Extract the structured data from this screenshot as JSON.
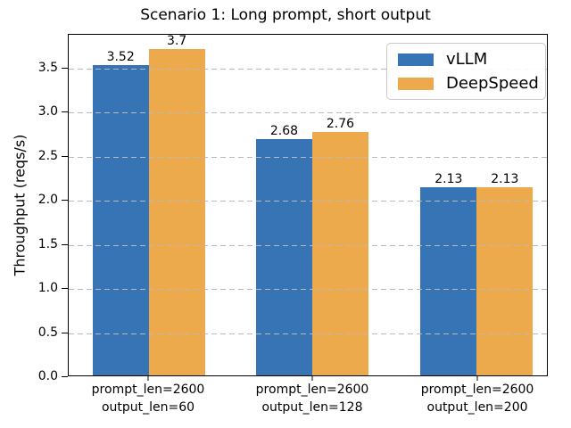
{
  "chart_data": {
    "type": "bar",
    "title": "Scenario 1: Long prompt, short output",
    "xlabel": "",
    "ylabel": "Throughput (reqs/s)",
    "categories": [
      "prompt_len=2600\noutput_len=60",
      "prompt_len=2600\noutput_len=128",
      "prompt_len=2600\noutput_len=200"
    ],
    "series": [
      {
        "name": "vLLM",
        "color": "#3674b5",
        "values": [
          3.52,
          2.68,
          2.13
        ],
        "labels": [
          "3.52",
          "2.68",
          "2.13"
        ]
      },
      {
        "name": "DeepSpeed",
        "color": "#edaa4d",
        "values": [
          3.7,
          2.76,
          2.13
        ],
        "labels": [
          "3.7",
          "2.76",
          "2.13"
        ]
      }
    ],
    "yticks": [
      0.0,
      0.5,
      1.0,
      1.5,
      2.0,
      2.5,
      3.0,
      3.5
    ],
    "ylim": [
      0,
      3.885
    ],
    "grid": "horizontal-dashed",
    "grid_on_top": true,
    "legend_position": "upper right",
    "colors": {
      "grid": "#b9b9b9",
      "axis": "#000000",
      "background": "#ffffff"
    }
  }
}
